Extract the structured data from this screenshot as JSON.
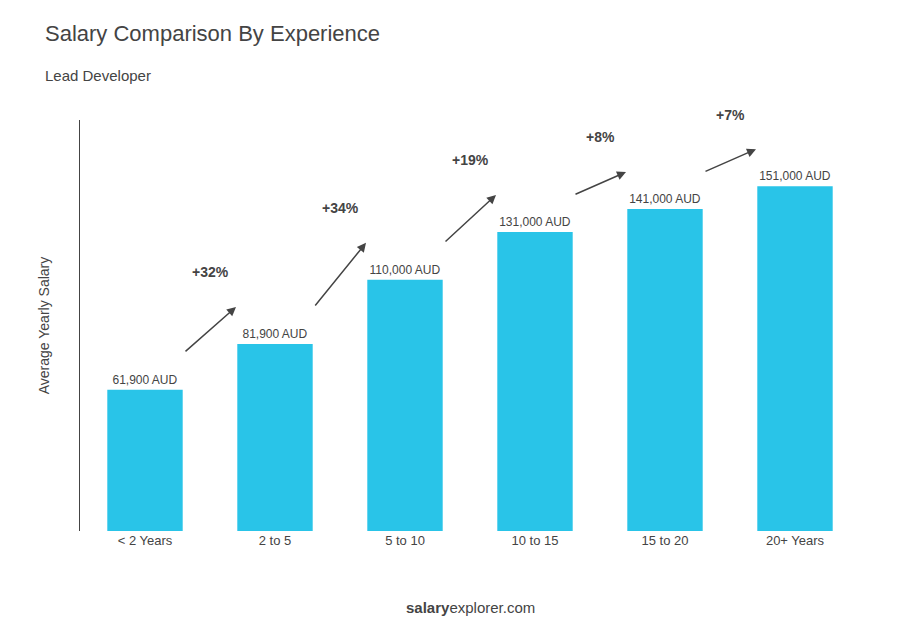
{
  "chart_data": {
    "type": "bar",
    "title": "Salary Comparison By Experience",
    "subtitle": "Lead Developer",
    "categories": [
      "< 2 Years",
      "2 to 5",
      "5 to 10",
      "10 to 15",
      "15 to 20",
      "20+ Years"
    ],
    "values": [
      61900,
      81900,
      110000,
      131000,
      141000,
      151000
    ],
    "value_labels": [
      "61,900 AUD",
      "81,900 AUD",
      "110,000 AUD",
      "131,000 AUD",
      "141,000 AUD",
      "151,000 AUD"
    ],
    "data_labels": true,
    "color": "#29c4e8",
    "ylabel": "Average Yearly Salary",
    "ylim": [
      0,
      180000
    ],
    "tick_labels": "x",
    "grid": false,
    "annotations": [
      "+32%",
      "+34%",
      "+19%",
      "+8%",
      "+7%"
    ],
    "footer": [
      "salary",
      "explorer",
      ".com"
    ]
  }
}
